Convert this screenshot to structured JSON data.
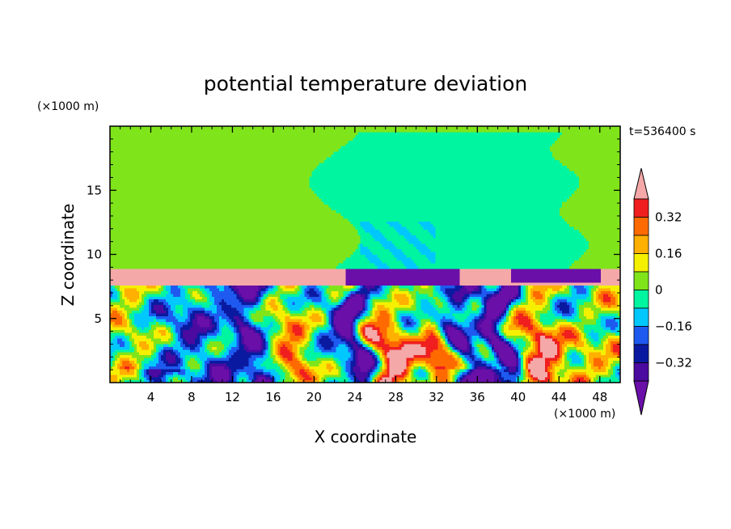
{
  "chart_data": {
    "type": "heatmap",
    "title": "potential temperature deviation",
    "xlabel": "X coordinate",
    "ylabel": "Z coordinate",
    "x_unit": "(×1000 m)",
    "y_unit": "(×1000 m)",
    "time_label": "t=536400 s",
    "xlim": [
      0,
      50
    ],
    "ylim": [
      0,
      20
    ],
    "x_ticks": [
      4,
      8,
      12,
      16,
      20,
      24,
      28,
      32,
      36,
      40,
      44,
      48
    ],
    "y_ticks": [
      5,
      10,
      15
    ],
    "grid": false,
    "colorbar": {
      "position": "right",
      "tick_labels": [
        "0.32",
        "0.16",
        "0",
        "−0.16",
        "−0.32"
      ],
      "tick_values": [
        0.32,
        0.16,
        0,
        -0.16,
        -0.32
      ],
      "levels": [
        -0.4,
        -0.32,
        -0.24,
        -0.16,
        -0.08,
        0,
        0.08,
        0.16,
        0.24,
        0.32,
        0.4
      ],
      "colors": [
        "#6a0fa8",
        "#4b0aa0",
        "#0a1aa0",
        "#1e5af0",
        "#00c8ff",
        "#00f5a0",
        "#7fe51a",
        "#f5f000",
        "#ffb000",
        "#ff6a00",
        "#f01e1e",
        "#f5a8a8"
      ],
      "extend": "both"
    },
    "field_regions": [
      {
        "description_value": 0.02,
        "x": [
          0,
          50
        ],
        "z": [
          9.0,
          20
        ],
        "note": "upper layer, near zero"
      },
      {
        "description_value": -0.02,
        "x": [
          22,
          46
        ],
        "z": [
          9.0,
          19.5
        ],
        "note": "plume region slightly negative"
      },
      {
        "description_value": 0.4,
        "x": [
          0,
          50
        ],
        "z": [
          7.5,
          9.0
        ],
        "note": "warm inversion layer"
      },
      {
        "description_value": -0.4,
        "x": [
          23,
          34
        ],
        "z": [
          7.6,
          9.1
        ],
        "note": "cold cap left"
      },
      {
        "description_value": -0.4,
        "x": [
          39,
          48
        ],
        "z": [
          7.7,
          8.9
        ],
        "note": "cold cap right"
      },
      {
        "description_value": 0.0,
        "x": [
          0,
          50
        ],
        "z": [
          0,
          7.5
        ],
        "note": "turbulent boundary layer, mixed"
      }
    ]
  },
  "colors": {
    "upper": "#7fe51a",
    "plume": "#00f5a0",
    "inversion": "#f5a8a8",
    "cold_cap": "#6a0fa8",
    "boundary_bg": "#00c8ff"
  }
}
